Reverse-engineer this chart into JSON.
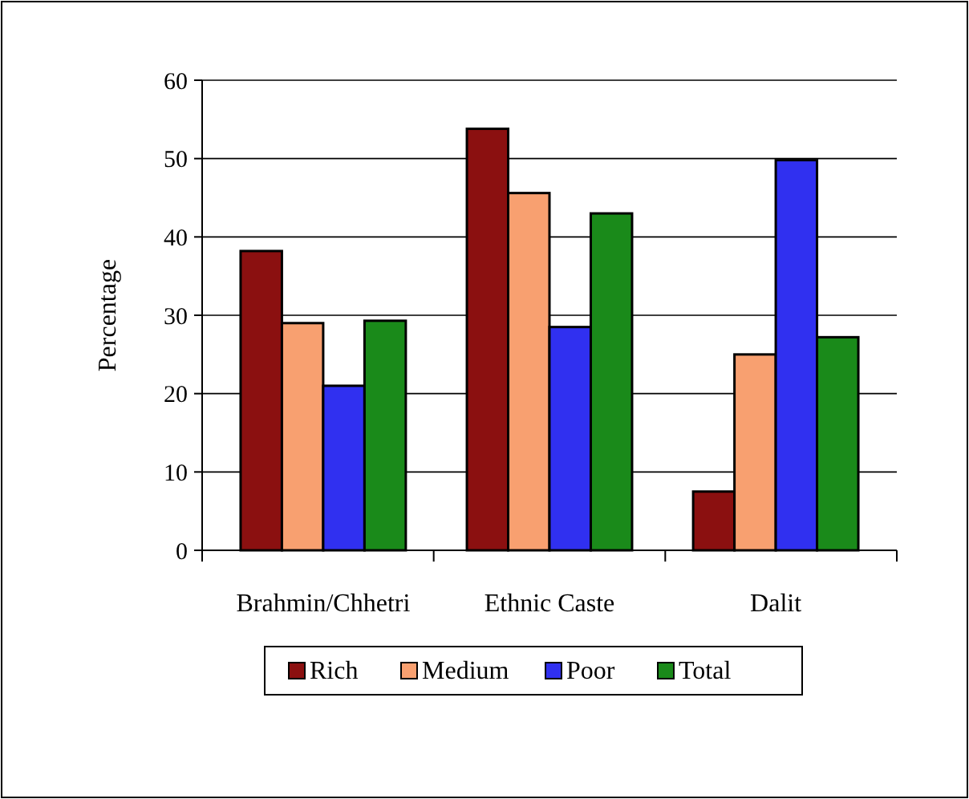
{
  "chart_data": {
    "type": "bar",
    "ylabel": "Percentage",
    "categories": [
      "Brahmin/Chhetri",
      "Ethnic Caste",
      "Dalit"
    ],
    "series": [
      {
        "name": "Rich",
        "color": "#8b1010",
        "values": [
          38.2,
          53.8,
          7.5
        ]
      },
      {
        "name": "Medium",
        "color": "#f8a070",
        "values": [
          29,
          45.6,
          25
        ]
      },
      {
        "name": "Poor",
        "color": "#3030f0",
        "values": [
          21,
          28.5,
          49.8
        ]
      },
      {
        "name": "Total",
        "color": "#1a8a1a",
        "values": [
          29.3,
          43,
          27.2
        ]
      }
    ],
    "ylim": [
      0,
      60
    ],
    "yticks": [
      0,
      10,
      20,
      30,
      40,
      50,
      60
    ],
    "grid": "y",
    "legend": "bottom"
  }
}
